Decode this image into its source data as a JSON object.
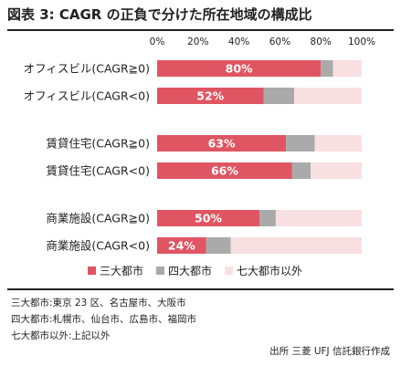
{
  "title": "図表 3: CAGR の正負で分けた所在地域の構成比",
  "chart_data": {
    "type": "bar",
    "orientation": "horizontal",
    "stacked": true,
    "x_ticks": [
      "0%",
      "20%",
      "40%",
      "60%",
      "80%",
      "100%"
    ],
    "xlim": [
      0,
      100
    ],
    "legend_position": "bottom",
    "categories": [
      "オフィスビル(CAGR≧0)",
      "オフィスビル(CAGR<0)",
      "賃貸住宅(CAGR≧0)",
      "賃貸住宅(CAGR<0)",
      "商業施設(CAGR≧0)",
      "商業施設(CAGR<0)"
    ],
    "category_gap_after": [
      1,
      3
    ],
    "series": [
      {
        "name": "三大都市",
        "color": "#e05562",
        "values": [
          80,
          52,
          63,
          66,
          50,
          24
        ]
      },
      {
        "name": "四大都市",
        "color": "#aaaaaa",
        "values": [
          6,
          15,
          14,
          9,
          8,
          12
        ]
      },
      {
        "name": "七大都市以外",
        "color": "#f9e0e2",
        "values": [
          14,
          33,
          23,
          25,
          42,
          64
        ]
      }
    ],
    "data_labels": [
      "80%",
      "52%",
      "63%",
      "66%",
      "50%",
      "24%"
    ]
  },
  "notes": [
    "三大都市:東京 23 区、名古屋市、大阪市",
    "四大都市:札幌市、仙台市、広島市、福岡市",
    "七大都市以外:上記以外"
  ],
  "source": "出所 三菱 UFJ 信託銀行作成"
}
